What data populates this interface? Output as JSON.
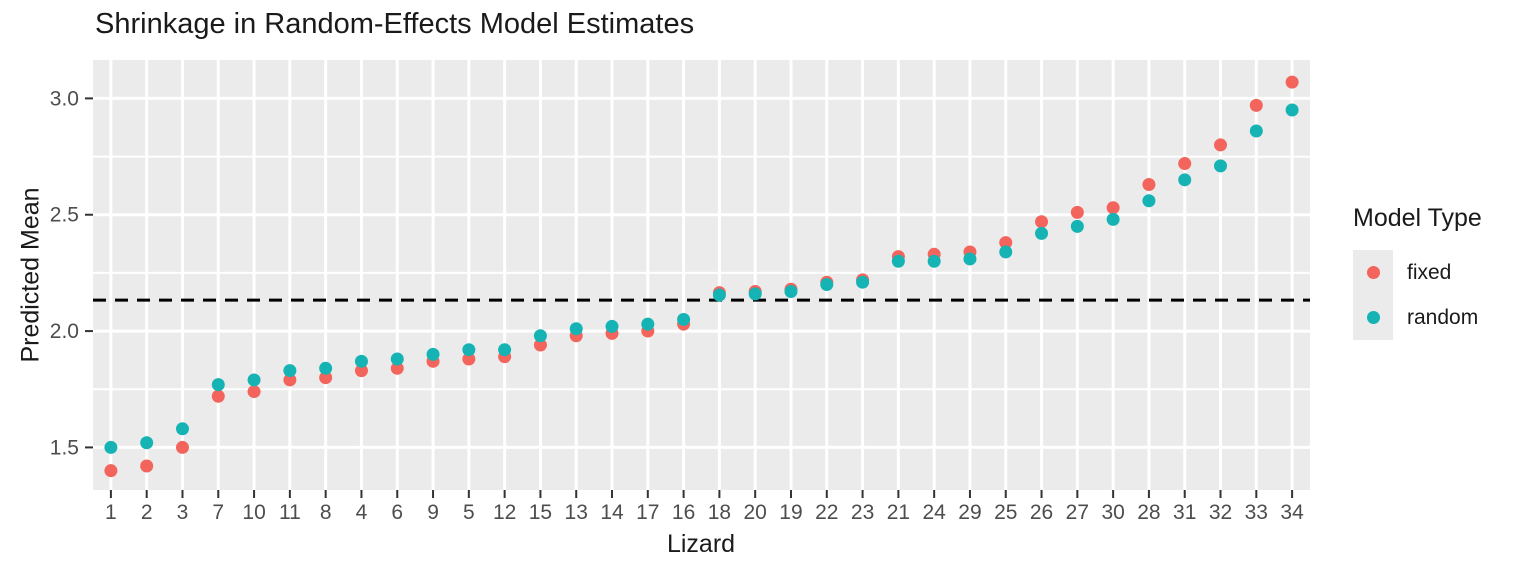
{
  "title": "Shrinkage in Random-Effects Model Estimates",
  "chart_data": {
    "type": "scatter",
    "title": "Shrinkage in Random-Effects Model Estimates",
    "xlabel": "Lizard",
    "ylabel": "Predicted Mean",
    "categories": [
      1,
      2,
      3,
      7,
      10,
      11,
      8,
      4,
      6,
      9,
      5,
      12,
      15,
      13,
      14,
      17,
      16,
      18,
      20,
      19,
      22,
      23,
      21,
      24,
      29,
      25,
      26,
      27,
      30,
      28,
      31,
      32,
      33,
      34
    ],
    "series": [
      {
        "name": "fixed",
        "color": "#F3655C",
        "values": [
          1.4,
          1.42,
          1.5,
          1.72,
          1.74,
          1.79,
          1.8,
          1.83,
          1.84,
          1.87,
          1.88,
          1.89,
          1.94,
          1.98,
          1.99,
          2.0,
          2.03,
          2.165,
          2.17,
          2.18,
          2.21,
          2.22,
          2.32,
          2.33,
          2.34,
          2.38,
          2.47,
          2.51,
          2.53,
          2.63,
          2.72,
          2.8,
          2.97,
          3.07
        ]
      },
      {
        "name": "random",
        "color": "#16B3B5",
        "values": [
          1.5,
          1.52,
          1.58,
          1.77,
          1.79,
          1.83,
          1.84,
          1.87,
          1.88,
          1.9,
          1.92,
          1.92,
          1.98,
          2.01,
          2.02,
          2.03,
          2.05,
          2.155,
          2.16,
          2.17,
          2.2,
          2.21,
          2.3,
          2.3,
          2.31,
          2.34,
          2.42,
          2.45,
          2.48,
          2.56,
          2.65,
          2.71,
          2.86,
          2.95
        ]
      }
    ],
    "reference_line": {
      "value": 2.133,
      "style": "dashed",
      "color": "#000000"
    },
    "yticks": [
      1.5,
      2.0,
      2.5,
      3.0
    ],
    "yminorticks": [
      1.75,
      2.25,
      2.75
    ],
    "ylim": [
      1.317,
      3.165
    ],
    "grid": true,
    "legend_position": "right",
    "panel_bg": "#EBEBEB",
    "gridline_color": "#FFFFFF",
    "tick_label_color": "#4D4D4D",
    "tick_color": "#333333"
  },
  "legend": {
    "title": "Model Type",
    "items": [
      {
        "label": "fixed",
        "color": "#F3655C"
      },
      {
        "label": "random",
        "color": "#16B3B5"
      }
    ]
  }
}
